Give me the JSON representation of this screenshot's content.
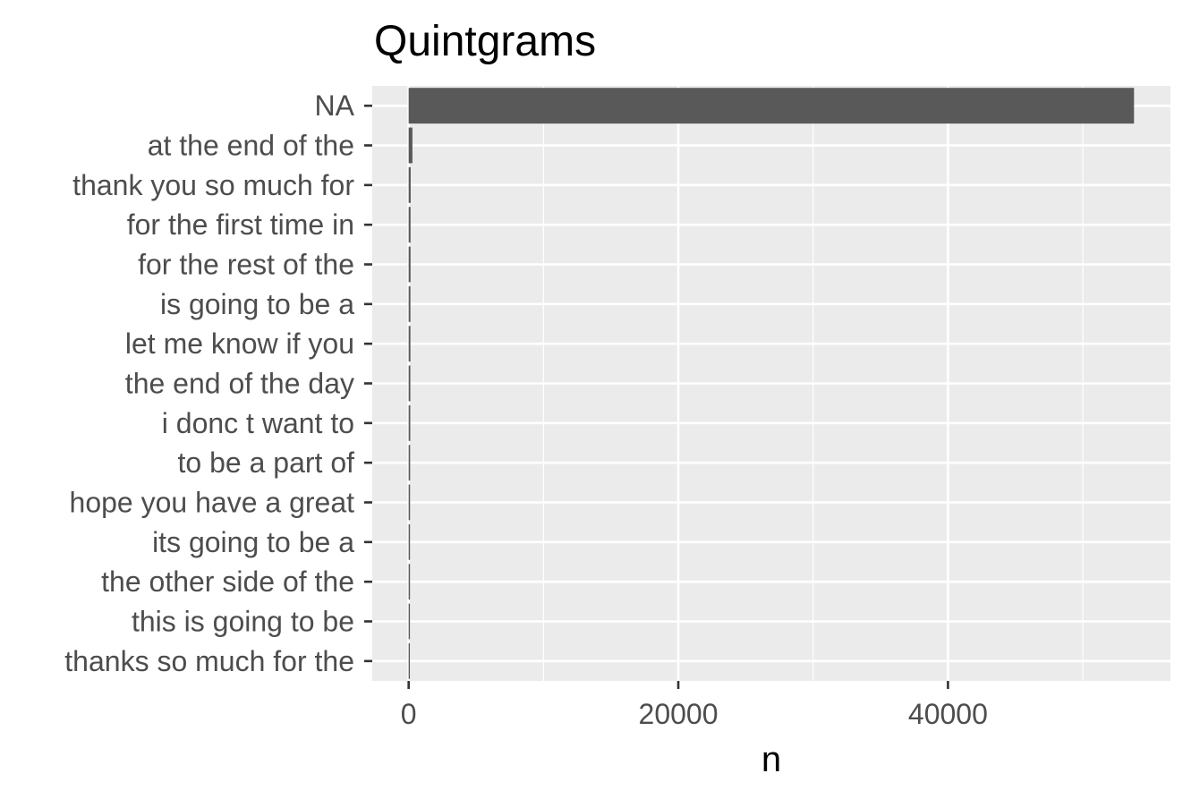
{
  "chart_data": {
    "type": "bar",
    "orientation": "horizontal",
    "title": "Quintgrams",
    "xlabel": "n",
    "ylabel": "",
    "categories": [
      "NA",
      "at the end of the",
      "thank you so much for",
      "for the first time in",
      "for the rest of the",
      "is going to be a",
      "let me know if you",
      "the end of the day",
      "i donc t want to",
      "to be a part of",
      "hope you have a great",
      "its going to be a",
      "the other side of the",
      "this is going to be",
      "thanks so much for the"
    ],
    "values": [
      53800,
      280,
      150,
      140,
      140,
      130,
      130,
      125,
      120,
      110,
      105,
      100,
      100,
      95,
      90
    ],
    "xlim": [
      -2700,
      56500
    ],
    "xticks": [
      0,
      20000,
      40000
    ],
    "xtick_labels": [
      "0",
      "20000",
      "40000"
    ],
    "grid": true,
    "bar_color": "#595959",
    "panel_color": "#ebebeb",
    "grid_color": "#ffffff"
  }
}
